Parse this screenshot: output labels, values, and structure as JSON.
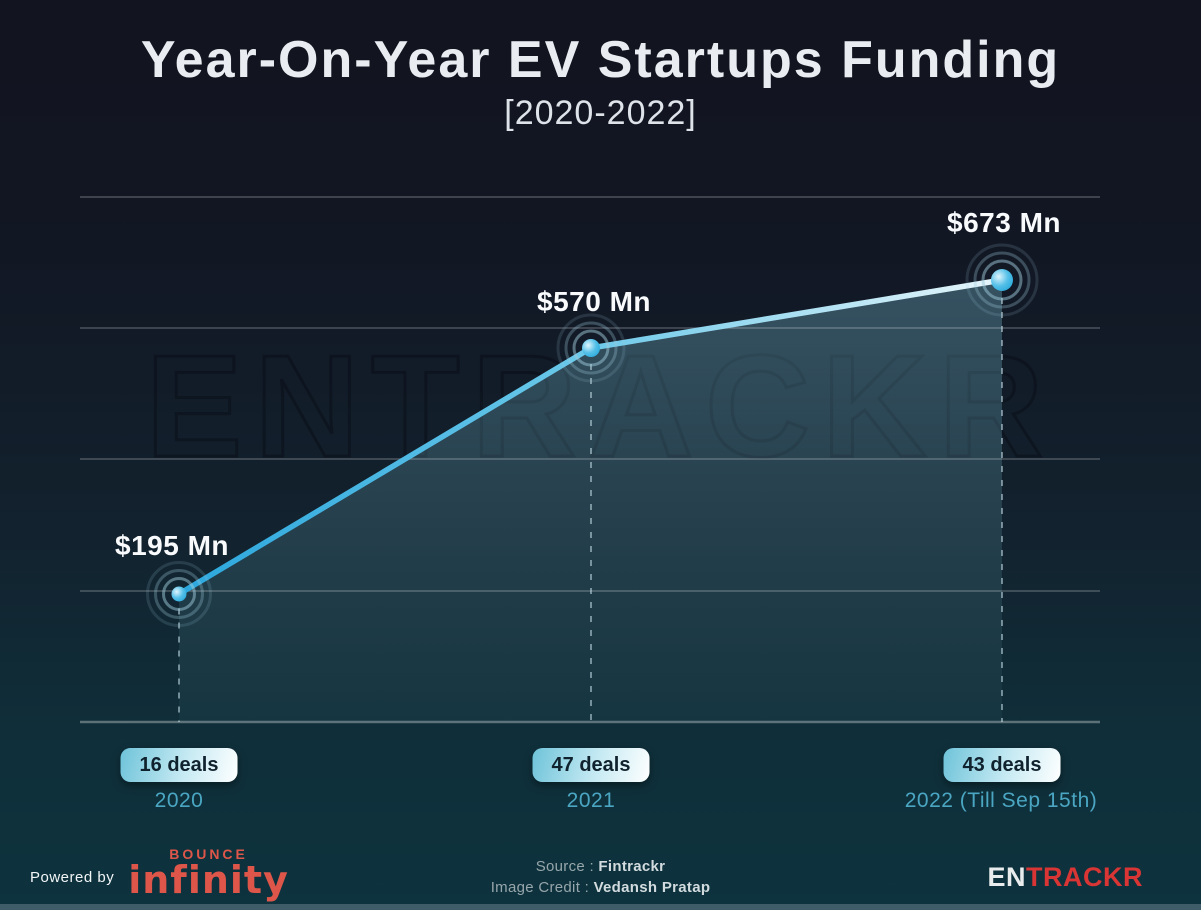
{
  "header": {
    "title": "Year-On-Year EV Startups Funding",
    "subtitle": "[2020-2022]"
  },
  "watermark": "ENTRACKR",
  "chart_data": {
    "type": "line",
    "title": "Year-On-Year EV Startups Funding",
    "subtitle": "[2020-2022]",
    "unit": "USD Mn",
    "ylim": [
      0,
      850
    ],
    "gridlines": [
      200,
      400,
      600,
      800
    ],
    "grid": true,
    "legend": false,
    "categories": [
      "2020",
      "2021",
      "2022 (Till Sep 15th)"
    ],
    "values": [
      195,
      570,
      673
    ],
    "points": [
      {
        "x_label": "2020",
        "value": 195,
        "value_label": "$195 Mn",
        "deals": 16,
        "deals_label": "16 deals"
      },
      {
        "x_label": "2021",
        "value": 570,
        "value_label": "$570 Mn",
        "deals": 47,
        "deals_label": "47 deals"
      },
      {
        "x_label": "2022 (Till Sep 15th)",
        "value": 673,
        "value_label": "$673 Mn",
        "deals": 43,
        "deals_label": "43 deals"
      }
    ]
  },
  "footer": {
    "powered_by": "Powered by",
    "bounce_top": "BOUNCE",
    "bounce_bottom": "infinity",
    "source_label": "Source :",
    "source_value": "Fintrackr",
    "credit_label": "Image Credit :",
    "credit_value": "Vedansh Pratap",
    "brand_en": "EN",
    "brand_trackr": "TRACKR"
  },
  "colors": {
    "background_top": "#12141f",
    "background_bottom": "#0d333e",
    "line_start": "#2ba7dd",
    "line_end": "#e8f6fb",
    "point_fill": "#54c0e8",
    "badge_text": "#10222e",
    "year_label": "#4aa6c2",
    "bounce_red": "#dd5649",
    "entrackr_red": "#d93535"
  }
}
